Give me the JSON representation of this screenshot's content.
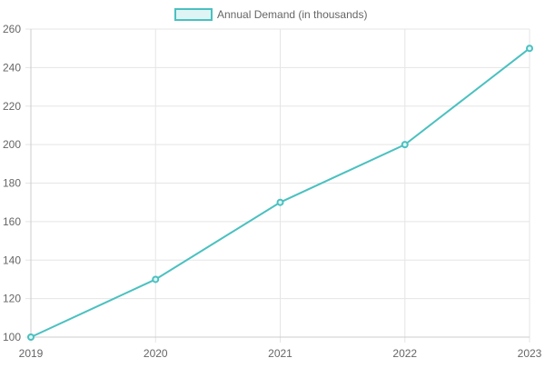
{
  "chart_data": {
    "type": "line",
    "x": [
      "2019",
      "2020",
      "2021",
      "2022",
      "2023"
    ],
    "series": [
      {
        "name": "Annual Demand (in thousands)",
        "values": [
          100,
          130,
          170,
          200,
          250
        ],
        "color": "#4bc0c0",
        "fill": "#dff5f5"
      }
    ],
    "ylim": [
      100,
      260
    ],
    "yticks": [
      100,
      120,
      140,
      160,
      180,
      200,
      220,
      240,
      260
    ],
    "grid": true,
    "legend": "top-center"
  }
}
